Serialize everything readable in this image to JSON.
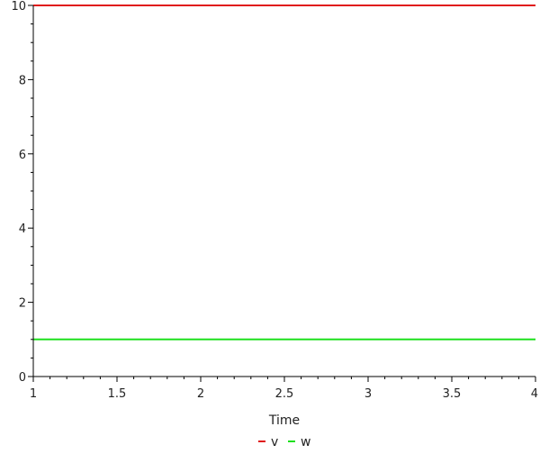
{
  "chart_data": {
    "type": "line",
    "title": "",
    "xlabel": "Time",
    "ylabel": "",
    "xlim": [
      1,
      4
    ],
    "ylim": [
      0,
      10
    ],
    "x_ticks": [
      1,
      1.5,
      2,
      2.5,
      3,
      3.5,
      4
    ],
    "x_tick_labels": [
      "1",
      "1.5",
      "2",
      "2.5",
      "3",
      "3.5",
      "4"
    ],
    "y_ticks": [
      0,
      2,
      4,
      6,
      8,
      10
    ],
    "y_tick_labels": [
      "0",
      "2",
      "4",
      "6",
      "8",
      "10"
    ],
    "grid": false,
    "legend_position": "bottom-center",
    "series": [
      {
        "name": "v",
        "color": "#e01b1b",
        "x": [
          1,
          4
        ],
        "y": [
          10,
          10
        ]
      },
      {
        "name": "w",
        "color": "#1ee01e",
        "x": [
          1,
          4
        ],
        "y": [
          1,
          1
        ]
      }
    ]
  }
}
